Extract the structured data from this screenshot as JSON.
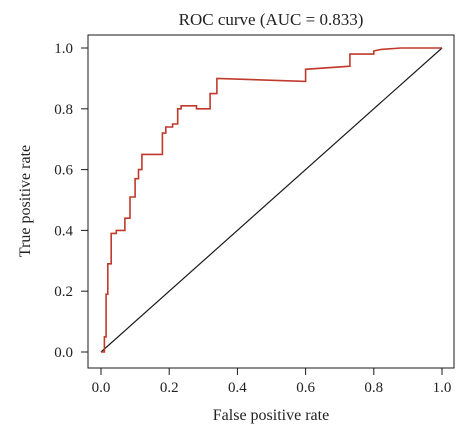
{
  "chart_data": {
    "type": "line",
    "title": "ROC curve (AUC = 0.833)",
    "xlabel": "False positive rate",
    "ylabel": "True positive rate",
    "xlim": [
      0,
      1
    ],
    "ylim": [
      0,
      1
    ],
    "xticks": [
      "0.0",
      "0.2",
      "0.4",
      "0.6",
      "0.8",
      "1.0"
    ],
    "yticks": [
      "0.0",
      "0.2",
      "0.4",
      "0.6",
      "0.8",
      "1.0"
    ],
    "grid": false,
    "legend": "none",
    "colors": {
      "roc": "#c0392b",
      "diagonal": "#1a1a1a",
      "axis": "#1a1a1a"
    },
    "series": [
      {
        "x": [
          0,
          0.01,
          0.01,
          0.015,
          0.015,
          0.02,
          0.02,
          0.03,
          0.03,
          0.045,
          0.045,
          0.07,
          0.07,
          0.085,
          0.085,
          0.1,
          0.1,
          0.11,
          0.11,
          0.12,
          0.12,
          0.13,
          0.13,
          0.18,
          0.18,
          0.19,
          0.19,
          0.21,
          0.21,
          0.225,
          0.225,
          0.235,
          0.235,
          0.28,
          0.28,
          0.32,
          0.32,
          0.34,
          0.34,
          0.6,
          0.6,
          0.73,
          0.73,
          0.8,
          0.8,
          0.82,
          0.88,
          0.9,
          1.0
        ],
        "y": [
          0,
          0,
          0.05,
          0.05,
          0.19,
          0.19,
          0.29,
          0.29,
          0.39,
          0.39,
          0.4,
          0.4,
          0.44,
          0.44,
          0.51,
          0.51,
          0.57,
          0.57,
          0.6,
          0.6,
          0.65,
          0.65,
          0.65,
          0.65,
          0.72,
          0.72,
          0.74,
          0.74,
          0.75,
          0.75,
          0.8,
          0.8,
          0.81,
          0.81,
          0.8,
          0.8,
          0.85,
          0.85,
          0.9,
          0.89,
          0.93,
          0.94,
          0.98,
          0.98,
          0.99,
          0.995,
          1.0,
          1.0,
          1.0
        ]
      }
    ]
  }
}
